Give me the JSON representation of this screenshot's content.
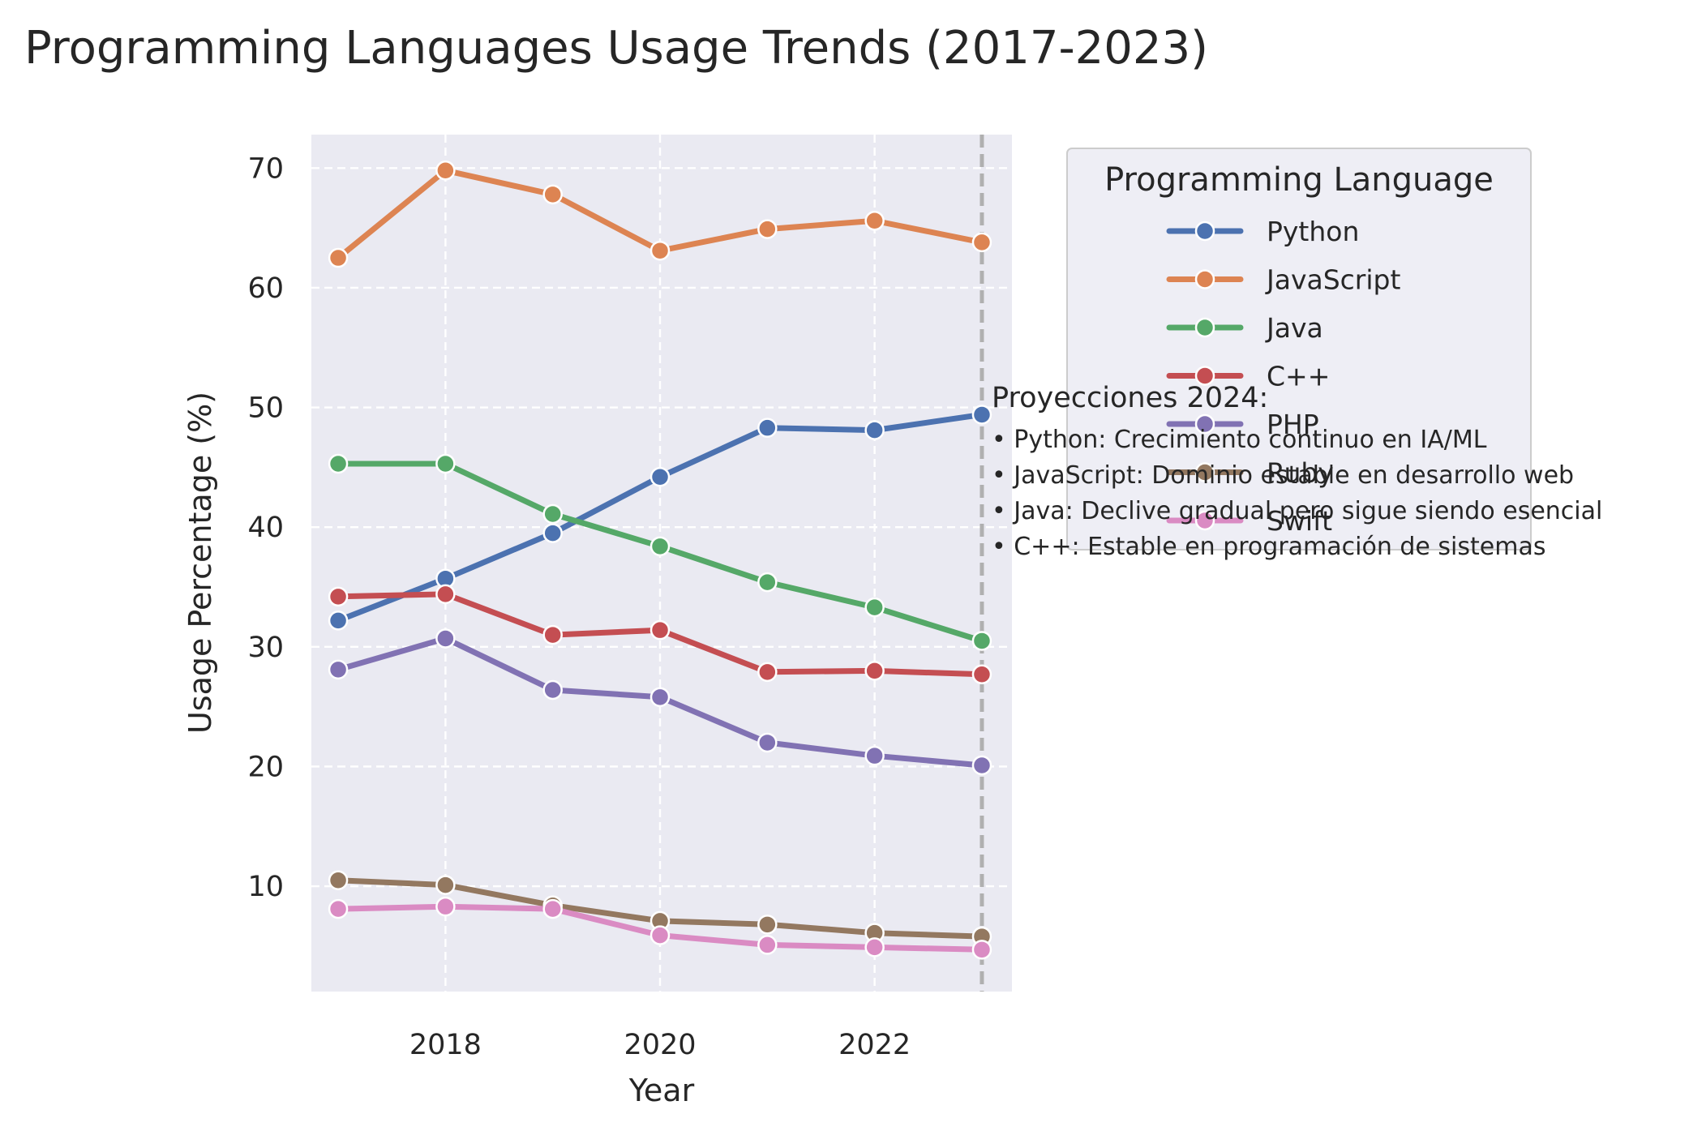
{
  "chart_data": {
    "type": "line",
    "title": "Programming Languages Usage Trends (2017-2023)",
    "xlabel": "Year",
    "ylabel": "Usage Percentage (%)",
    "x": [
      2017,
      2018,
      2019,
      2020,
      2021,
      2022,
      2023
    ],
    "xlim": [
      2016.75,
      2023.28
    ],
    "ylim": [
      1.2,
      72.8
    ],
    "xticks": [
      2018,
      2020,
      2022
    ],
    "xtick_labels": [
      "2018",
      "2020",
      "2022"
    ],
    "yticks": [
      10,
      20,
      30,
      40,
      50,
      60,
      70
    ],
    "ytick_labels": [
      "10",
      "20",
      "30",
      "40",
      "50",
      "60",
      "70"
    ],
    "grid": true,
    "grid_style": "dashed",
    "background": "#eaeaf2",
    "vline": {
      "x": 2023,
      "style": "dashed",
      "color": "#b0b0b0"
    },
    "legend": {
      "title": "Programming Language",
      "placement": "outside-right-top"
    },
    "series": [
      {
        "name": "Python",
        "color": "#4c72b0",
        "values": [
          32.2,
          35.7,
          39.5,
          44.2,
          48.3,
          48.1,
          49.4
        ]
      },
      {
        "name": "JavaScript",
        "color": "#dd8452",
        "values": [
          62.5,
          69.8,
          67.8,
          63.1,
          64.9,
          65.6,
          63.8
        ]
      },
      {
        "name": "Java",
        "color": "#55a868",
        "values": [
          45.3,
          45.3,
          41.1,
          38.4,
          35.4,
          33.3,
          30.5
        ]
      },
      {
        "name": "C++",
        "color": "#c44e52",
        "values": [
          34.2,
          34.4,
          31.0,
          31.4,
          27.9,
          28.0,
          27.7
        ]
      },
      {
        "name": "PHP",
        "color": "#8172b3",
        "values": [
          28.1,
          30.7,
          26.4,
          25.8,
          22.0,
          20.9,
          20.1
        ]
      },
      {
        "name": "Ruby",
        "color": "#937860",
        "values": [
          10.5,
          10.1,
          8.4,
          7.1,
          6.8,
          6.1,
          5.8
        ]
      },
      {
        "name": "Swift",
        "color": "#da8bc3",
        "values": [
          8.1,
          8.3,
          8.1,
          5.9,
          5.1,
          4.9,
          4.7
        ]
      }
    ],
    "annotation": {
      "heading": "Proyecciones 2024:",
      "lines": [
        "• Python: Crecimiento continuo en IA/ML",
        "• JavaScript: Dominio estable en desarrollo web",
        "• Java: Declive gradual pero sigue siendo esencial",
        "• C++: Estable en programación de sistemas"
      ]
    }
  }
}
